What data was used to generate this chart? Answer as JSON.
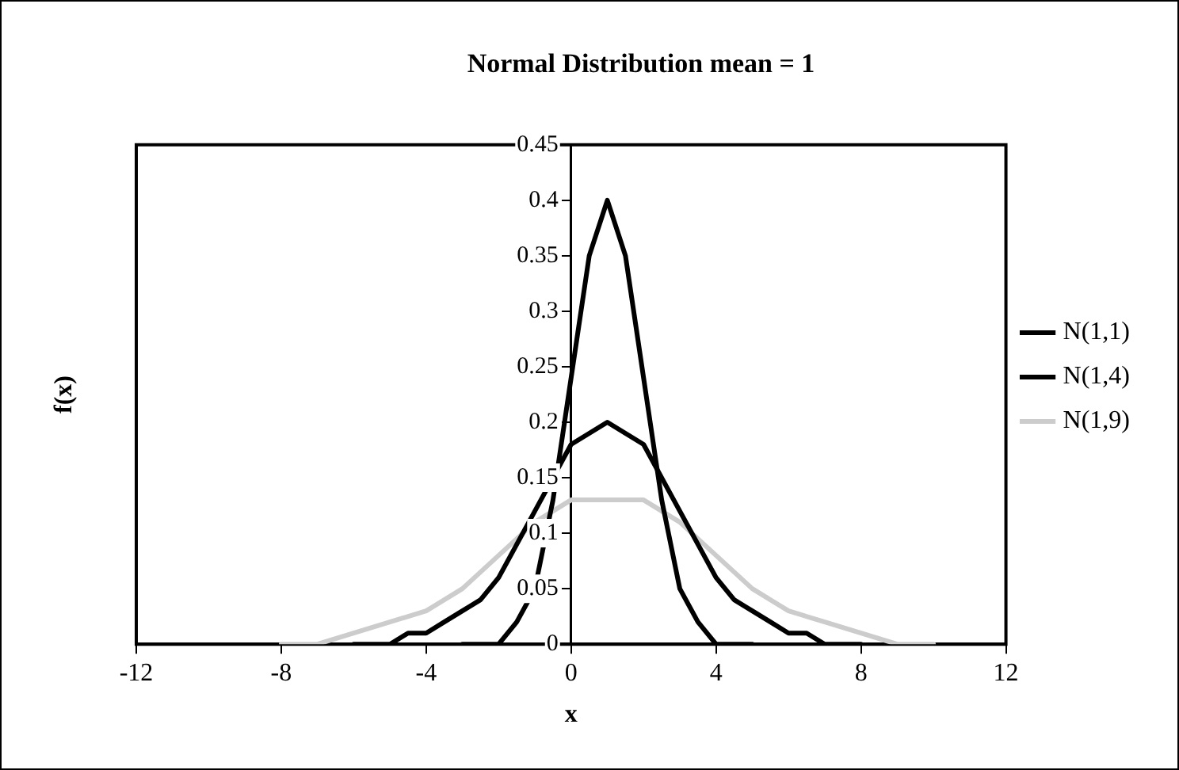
{
  "chart_data": {
    "type": "line",
    "title": "Normal Distribution mean = 1",
    "xlabel": "x",
    "ylabel": "f(x)",
    "xlim": [
      -12,
      12
    ],
    "xticks": [
      -12,
      -8,
      -4,
      0,
      4,
      8,
      12
    ],
    "ylim": [
      0,
      0.45
    ],
    "yticks": [
      0,
      0.05,
      0.1,
      0.15,
      0.2,
      0.25,
      0.3,
      0.35,
      0.4,
      0.45
    ],
    "grid": false,
    "legend": "right",
    "marker": "none",
    "line_style": "solid",
    "series": [
      {
        "name": "N(1,1)",
        "color": "#000000",
        "x": [
          -3,
          -2.5,
          -2,
          -1.5,
          -1,
          -0.5,
          0,
          0.5,
          1,
          1.5,
          2,
          2.5,
          3,
          3.5,
          4,
          4.5,
          5
        ],
        "values": [
          0,
          0,
          0,
          0.02,
          0.05,
          0.13,
          0.24,
          0.35,
          0.4,
          0.35,
          0.24,
          0.13,
          0.05,
          0.02,
          0,
          0,
          0
        ]
      },
      {
        "name": "N(1,4)",
        "color": "#000000",
        "x": [
          -6,
          -5.5,
          -5,
          -4.5,
          -4,
          -3.5,
          -3,
          -2.5,
          -2,
          -1.5,
          -1,
          -0.5,
          0,
          0.5,
          1,
          1.5,
          2,
          2.5,
          3,
          3.5,
          4,
          4.5,
          5,
          5.5,
          6,
          6.5,
          7,
          7.5,
          8
        ],
        "values": [
          0,
          0,
          0,
          0.01,
          0.01,
          0.02,
          0.03,
          0.04,
          0.06,
          0.09,
          0.12,
          0.15,
          0.18,
          0.19,
          0.2,
          0.19,
          0.18,
          0.15,
          0.12,
          0.09,
          0.06,
          0.04,
          0.03,
          0.02,
          0.01,
          0.01,
          0,
          0,
          0
        ]
      },
      {
        "name": "N(1,9)",
        "color": "#cccccc",
        "x": [
          -8,
          -7,
          -6,
          -5,
          -4,
          -3,
          -2,
          -1,
          0,
          1,
          2,
          3,
          4,
          5,
          6,
          7,
          8,
          9,
          10
        ],
        "values": [
          0,
          0,
          0.01,
          0.02,
          0.03,
          0.05,
          0.08,
          0.11,
          0.13,
          0.13,
          0.13,
          0.11,
          0.08,
          0.05,
          0.03,
          0.02,
          0.01,
          0,
          0
        ]
      }
    ]
  }
}
